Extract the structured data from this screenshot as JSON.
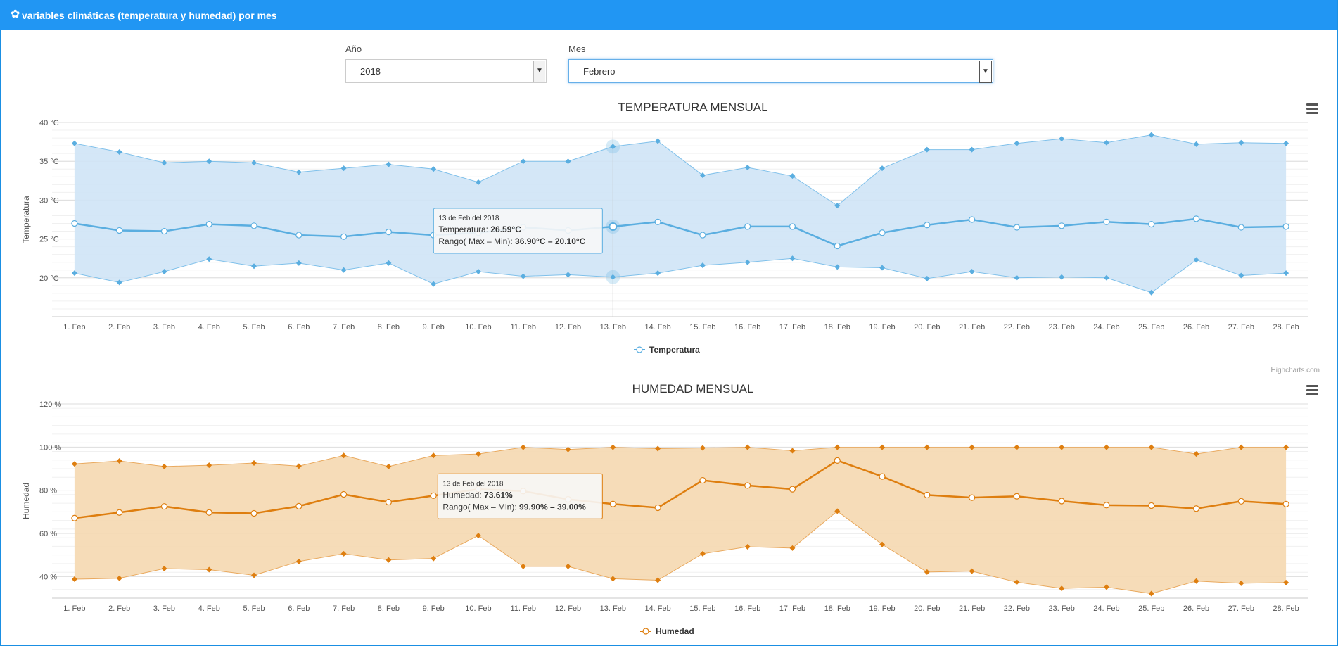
{
  "header": {
    "icon": "gear-icon",
    "title": "variables climáticas (temperatura y humedad) por mes"
  },
  "filters": {
    "year_label": "Año",
    "year_value": "2018",
    "month_label": "Mes",
    "month_value": "Febrero"
  },
  "credits": "Highcharts.com",
  "chart_data": [
    {
      "type": "line",
      "subtype": "line with arearange",
      "title": "TEMPERATURA MENSUAL",
      "ylabel": "Temperatura",
      "ylim": [
        15,
        40
      ],
      "y_ticks": [
        20,
        25,
        30,
        35,
        40
      ],
      "y_tick_labels": [
        "20 °C",
        "25 °C",
        "30 °C",
        "35 °C",
        "40 °C"
      ],
      "categories": [
        "1. Feb",
        "2. Feb",
        "3. Feb",
        "4. Feb",
        "5. Feb",
        "6. Feb",
        "7. Feb",
        "8. Feb",
        "9. Feb",
        "10. Feb",
        "11. Feb",
        "12. Feb",
        "13. Feb",
        "14. Feb",
        "15. Feb",
        "16. Feb",
        "17. Feb",
        "18. Feb",
        "19. Feb",
        "20. Feb",
        "21. Feb",
        "22. Feb",
        "23. Feb",
        "24. Feb",
        "25. Feb",
        "26. Feb",
        "27. Feb",
        "28. Feb"
      ],
      "series": [
        {
          "name": "Temperatura",
          "values": [
            27.0,
            26.1,
            26.0,
            26.9,
            26.7,
            25.5,
            25.3,
            25.9,
            25.5,
            25.8,
            26.5,
            26.1,
            26.59,
            27.2,
            25.5,
            26.6,
            26.6,
            24.1,
            25.8,
            26.8,
            27.5,
            26.5,
            26.7,
            27.2,
            26.9,
            27.6,
            26.5,
            26.6
          ]
        },
        {
          "name": "Rango",
          "type": "arearange",
          "max": [
            37.3,
            36.2,
            34.8,
            35.0,
            34.8,
            33.6,
            34.1,
            34.6,
            34.0,
            32.3,
            35.0,
            35.0,
            36.9,
            37.6,
            33.2,
            34.2,
            33.1,
            29.3,
            34.1,
            36.5,
            36.5,
            37.3,
            37.9,
            37.4,
            38.4,
            37.2,
            37.4,
            37.3
          ],
          "min": [
            20.6,
            19.4,
            20.8,
            22.4,
            21.5,
            21.9,
            21.0,
            21.9,
            19.2,
            20.8,
            20.2,
            20.4,
            20.1,
            20.6,
            21.6,
            22.0,
            22.5,
            21.4,
            21.3,
            19.9,
            20.8,
            20.0,
            20.1,
            20.0,
            18.1,
            22.3,
            20.3,
            20.6
          ]
        }
      ],
      "legend": {
        "position": "bottom-center",
        "entries": [
          "Temperatura"
        ]
      },
      "colors": {
        "line": "#5aaee0",
        "range_fill": "#cfe4f6",
        "range_line": "#7fc0ea"
      },
      "tooltip": {
        "header": "13 de Feb del 2018",
        "line1_label": "Temperatura: ",
        "line1_value": "26.59°C",
        "line2_label": "Rango( Max – Min): ",
        "line2_value": "36.90°C – 20.10°C",
        "index": 12
      }
    },
    {
      "type": "line",
      "subtype": "line with arearange",
      "title": "HUMEDAD MENSUAL",
      "ylabel": "Humedad",
      "ylim": [
        30,
        120
      ],
      "y_ticks": [
        40,
        60,
        80,
        100,
        120
      ],
      "y_tick_labels": [
        "40 %",
        "60 %",
        "80 %",
        "100 %",
        "120 %"
      ],
      "categories": [
        "1. Feb",
        "2. Feb",
        "3. Feb",
        "4. Feb",
        "5. Feb",
        "6. Feb",
        "7. Feb",
        "8. Feb",
        "9. Feb",
        "10. Feb",
        "11. Feb",
        "12. Feb",
        "13. Feb",
        "14. Feb",
        "15. Feb",
        "16. Feb",
        "17. Feb",
        "18. Feb",
        "19. Feb",
        "20. Feb",
        "21. Feb",
        "22. Feb",
        "23. Feb",
        "24. Feb",
        "25. Feb",
        "26. Feb",
        "27. Feb",
        "28. Feb"
      ],
      "series": [
        {
          "name": "Humedad",
          "values": [
            67.1,
            69.7,
            72.5,
            69.7,
            69.3,
            72.6,
            78.1,
            74.5,
            77.5,
            80.5,
            79.6,
            75.8,
            73.61,
            71.9,
            84.6,
            82.2,
            80.5,
            93.8,
            86.4,
            77.8,
            76.6,
            77.2,
            75.0,
            73.1,
            72.9,
            71.5,
            74.9,
            73.6
          ]
        },
        {
          "name": "Rango",
          "type": "arearange",
          "max": [
            92.2,
            93.6,
            91.0,
            91.6,
            92.6,
            91.2,
            96.1,
            91.0,
            96.1,
            96.8,
            99.9,
            98.9,
            99.9,
            99.3,
            99.6,
            99.9,
            98.3,
            99.9,
            99.9,
            99.9,
            99.9,
            99.9,
            99.9,
            99.9,
            99.9,
            96.8,
            99.9,
            99.9
          ],
          "min": [
            38.8,
            39.2,
            43.7,
            43.2,
            40.6,
            47.0,
            50.6,
            47.7,
            48.4,
            59.0,
            44.7,
            44.7,
            39.0,
            38.3,
            50.6,
            53.8,
            53.2,
            70.3,
            54.9,
            42.1,
            42.5,
            37.4,
            34.5,
            35.1,
            32.1,
            37.9,
            36.9,
            37.2
          ]
        }
      ],
      "legend": {
        "position": "bottom-center",
        "entries": [
          "Humedad"
        ]
      },
      "colors": {
        "line": "#de7e0f",
        "range_fill": "#f5d8b0",
        "range_line": "#e9a95e"
      },
      "tooltip": {
        "header": "13 de Feb del 2018",
        "line1_label": "Humedad: ",
        "line1_value": "73.61%",
        "line2_label": "Rango( Max – Min): ",
        "line2_value": "99.90% – 39.00%",
        "index": 12
      }
    }
  ]
}
